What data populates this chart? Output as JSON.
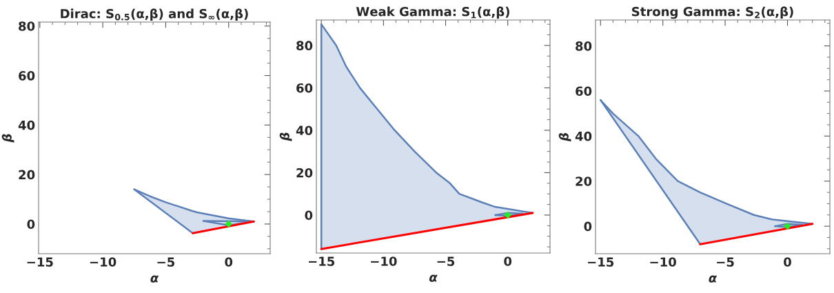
{
  "chart_data": [
    {
      "type": "line",
      "title": "Dirac: S$_{0.5}$(α,β) and S$_{∞}$(α,β)",
      "xlabel": "α",
      "ylabel": "β",
      "xlim": [
        -15.1,
        3.3
      ],
      "ylim": [
        -12,
        81.6
      ],
      "xticks": [
        {
          "value": -15,
          "label": "−15"
        },
        {
          "value": -10,
          "label": "−10"
        },
        {
          "value": -5,
          "label": "−5"
        },
        0
      ],
      "yticks": [
        0,
        20,
        40,
        60,
        80
      ],
      "series": [
        {
          "color": "#5b80b8",
          "x": [
            -7.5,
            -6.25,
            -5,
            -2.85,
            -2.5,
            0,
            2
          ],
          "values": [
            14,
            11.2,
            8.8,
            5.2,
            4.7,
            2.3,
            1
          ],
          "lower": [
            14,
            9.25,
            4.5,
            -3.7,
            -3.36,
            -1.1,
            1
          ],
          "upper": [
            14,
            11.2,
            8.8,
            5.2,
            4.7,
            2.3,
            1
          ]
        },
        {
          "color": "#5b80b8",
          "x": [
            -7.5,
            -2.85
          ],
          "values": [
            14,
            -3.7
          ]
        },
        {
          "type": "scatter",
          "marker": "diamond",
          "color": "#22ee22",
          "x": [
            0
          ],
          "values": [
            0
          ]
        },
        {
          "color": "#5b80b8",
          "x": [
            -2,
            2
          ],
          "values": [
            1.2,
            1
          ]
        },
        {
          "color": "#5b80b8",
          "x": [
            -2,
            0,
            2
          ],
          "values": [
            1.2,
            -0.5,
            1
          ]
        },
        {
          "color": "#ff0000",
          "x": [
            -2.85,
            2
          ],
          "values": [
            -3.7,
            1
          ]
        }
      ]
    },
    {
      "type": "line",
      "title": "Weak Gamma: S$_{1}$(α,β)",
      "xlabel": "α",
      "ylabel": "β",
      "xlim": [
        -15.4,
        3.4
      ],
      "ylim": [
        -17.9,
        92
      ],
      "xticks": [
        {
          "value": -15,
          "label": "−15"
        },
        {
          "value": -10,
          "label": "−10"
        },
        {
          "value": -5,
          "label": "−5"
        },
        0
      ],
      "yticks": [
        0,
        20,
        40,
        60,
        80
      ],
      "series": [
        {
          "color": "#5b80b8",
          "x": [
            -15,
            -13.8,
            -13,
            -11.9,
            -10.5,
            -9.1,
            -7.5,
            -5.75,
            -4.65,
            -3.9,
            -2.07,
            -1.1,
            2
          ],
          "values": [
            90,
            80,
            70,
            60,
            50,
            40,
            30,
            20,
            15,
            10,
            6,
            4,
            1
          ],
          "lower": [
            -16,
            -14.8,
            -14,
            -12.9,
            -11.5,
            -10.1,
            -8.5,
            -6.75,
            -5.65,
            -4.9,
            -3.07,
            -2.1,
            1
          ],
          "upper": [
            90,
            80,
            70,
            60,
            50,
            40,
            30,
            20,
            15,
            10,
            6,
            4,
            1
          ]
        },
        {
          "color": "#5b80b8",
          "x": [
            -15,
            -15
          ],
          "values": [
            -16,
            90
          ]
        },
        {
          "type": "scatter",
          "marker": "diamond",
          "color": "#22ee22",
          "x": [
            0
          ],
          "values": [
            0
          ]
        },
        {
          "color": "#5b80b8",
          "x": [
            -1,
            0,
            1.2
          ],
          "values": [
            0,
            1,
            0.6
          ]
        },
        {
          "color": "#5b80b8",
          "x": [
            -1,
            0,
            1.2
          ],
          "values": [
            0,
            -0.4,
            0.6
          ]
        },
        {
          "color": "#ff0000",
          "x": [
            -15,
            2
          ],
          "values": [
            -16,
            1
          ]
        }
      ]
    },
    {
      "type": "line",
      "title": "Strong Gamma: S$_{2}$(α,β)",
      "xlabel": "α",
      "ylabel": "β",
      "xlim": [
        -15.4,
        3.4
      ],
      "ylim": [
        -12.2,
        91.5
      ],
      "xticks": [
        {
          "value": -15,
          "label": "−15"
        },
        {
          "value": -10,
          "label": "−10"
        },
        {
          "value": -5,
          "label": "−5"
        },
        0
      ],
      "yticks": [
        0,
        20,
        40,
        60,
        80
      ],
      "series": [
        {
          "color": "#5b80b8",
          "x": [
            -15,
            -14,
            -11.96,
            -10.57,
            -8.8,
            -7,
            -4.9,
            -2.7,
            -1.25,
            2
          ],
          "values": [
            56,
            50,
            40,
            30,
            20,
            15,
            10,
            5,
            3,
            1
          ],
          "lower": [
            56,
            48,
            31.7,
            20.6,
            6.4,
            -8,
            -5.9,
            -3.7,
            -2.25,
            1
          ],
          "upper": [
            56,
            50,
            40,
            30,
            20,
            15,
            10,
            5,
            3,
            1
          ]
        },
        {
          "color": "#5b80b8",
          "x": [
            -15,
            -7
          ],
          "values": [
            56,
            -8
          ]
        },
        {
          "type": "scatter",
          "marker": "diamond",
          "color": "#22ee22",
          "x": [
            0
          ],
          "values": [
            0
          ]
        },
        {
          "color": "#5b80b8",
          "x": [
            -1,
            0,
            1.2
          ],
          "values": [
            0,
            1,
            0.6
          ]
        },
        {
          "color": "#5b80b8",
          "x": [
            -1,
            0,
            1.2
          ],
          "values": [
            0,
            -0.4,
            0.6
          ]
        },
        {
          "color": "#ff0000",
          "x": [
            -7,
            2
          ],
          "values": [
            -8,
            1
          ]
        }
      ]
    }
  ]
}
